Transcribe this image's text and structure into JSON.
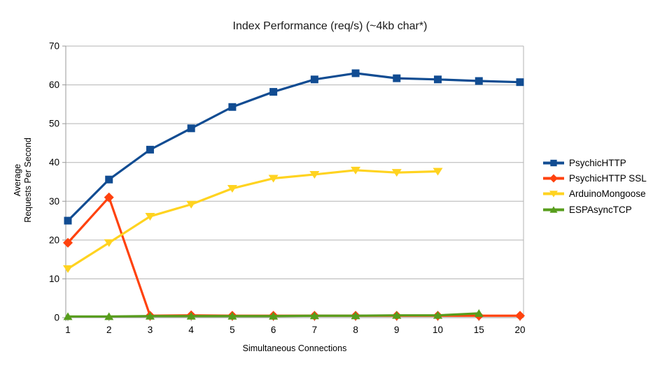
{
  "chart_data": {
    "type": "line",
    "title": "Index Performance (req/s) (~4kb char*)",
    "xlabel": "Simultaneous Connections",
    "ylabel": "Average\nRequests Per Second",
    "categories": [
      "1",
      "2",
      "3",
      "4",
      "5",
      "6",
      "7",
      "8",
      "9",
      "10",
      "15",
      "20"
    ],
    "ylim": [
      0,
      70
    ],
    "yticks": [
      0,
      10,
      20,
      30,
      40,
      50,
      60,
      70
    ],
    "grid": true,
    "legend_position": "right",
    "series": [
      {
        "name": "PsychicHTTP",
        "color": "#114c92",
        "marker": "square",
        "values": [
          25,
          35.6,
          43.3,
          48.8,
          54.3,
          58.2,
          61.4,
          63,
          61.7,
          61.4,
          61,
          60.7
        ]
      },
      {
        "name": "PsychicHTTP SSL",
        "color": "#ff420e",
        "marker": "diamond",
        "values": [
          19.3,
          31,
          0.5,
          0.6,
          0.5,
          0.5,
          0.5,
          0.5,
          0.5,
          0.5,
          0.5,
          0.5
        ]
      },
      {
        "name": "ArduinoMongoose",
        "color": "#ffd320",
        "marker": "triangle-down",
        "values": [
          12.6,
          19.3,
          26.1,
          29.2,
          33.3,
          35.9,
          36.9,
          38,
          37.4,
          37.7,
          null,
          null
        ]
      },
      {
        "name": "ESPAsyncTCP",
        "color": "#579d1c",
        "marker": "triangle-up",
        "values": [
          0.3,
          0.3,
          0.4,
          0.4,
          0.4,
          0.4,
          0.5,
          0.5,
          0.6,
          0.6,
          1.1,
          null
        ]
      }
    ],
    "style_colors": {
      "grid": "#b3b3b3",
      "axis": "#999999",
      "tick_text": "#000000"
    }
  }
}
